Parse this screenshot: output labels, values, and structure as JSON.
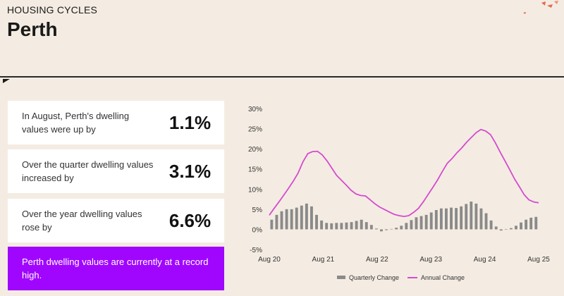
{
  "header": {
    "eyebrow": "HOUSING CYCLES",
    "city": "Perth"
  },
  "stats": [
    {
      "label": "In August, Perth's dwelling values were up by",
      "value": "1.1%"
    },
    {
      "label": "Over the quarter dwelling values increased by",
      "value": "3.1%"
    },
    {
      "label": "Over the year dwelling values rose by",
      "value": "6.6%"
    }
  ],
  "banner": {
    "text": "Perth dwelling values are currently at a record high."
  },
  "colors": {
    "background": "#f4ece2",
    "banner": "#a006fe",
    "bars": "#8a8a8a",
    "line": "#d64ad0",
    "logo": "#e8674a"
  },
  "chart_data": {
    "type": "bar+line",
    "x_ticks": [
      "Aug 20",
      "Aug 21",
      "Aug 22",
      "Aug 23",
      "Aug 24",
      "Aug 25"
    ],
    "y_ticks": [
      "30%",
      "25%",
      "20%",
      "15%",
      "10%",
      "5%",
      "0%",
      "-5%"
    ],
    "ylim": [
      -5,
      30
    ],
    "grid": false,
    "legend_position": "bottom",
    "series": [
      {
        "name": "Quarterly Change",
        "type": "bar",
        "values": [
          2.4,
          3.6,
          4.5,
          5.0,
          5.0,
          5.4,
          5.9,
          6.4,
          5.7,
          3.6,
          2.2,
          1.6,
          1.5,
          1.6,
          1.6,
          1.7,
          1.8,
          2.1,
          2.4,
          1.8,
          1.1,
          0.2,
          -0.5,
          -0.2,
          0.1,
          0.4,
          0.9,
          1.6,
          2.3,
          3.0,
          3.3,
          3.6,
          4.2,
          4.8,
          5.2,
          5.2,
          5.4,
          5.3,
          5.7,
          6.3,
          6.9,
          6.4,
          5.2,
          4.0,
          2.2,
          0.7,
          -0.3,
          -0.1,
          0.3,
          0.9,
          1.7,
          2.4,
          2.9,
          3.1
        ]
      },
      {
        "name": "Annual Change",
        "type": "line",
        "values": [
          3.5,
          5.2,
          6.8,
          8.5,
          10.2,
          12.0,
          14.0,
          16.8,
          18.8,
          19.3,
          19.4,
          18.5,
          17.0,
          15.2,
          13.4,
          12.2,
          11.0,
          9.7,
          8.8,
          8.4,
          8.3,
          7.3,
          6.3,
          5.5,
          4.9,
          4.3,
          3.7,
          3.4,
          3.2,
          3.4,
          4.2,
          5.2,
          6.8,
          8.6,
          10.4,
          12.3,
          14.4,
          16.4,
          17.6,
          19.0,
          20.2,
          21.6,
          22.8,
          24.0,
          24.8,
          24.4,
          23.5,
          21.5,
          19.2,
          17.0,
          14.8,
          12.5,
          10.6,
          8.6,
          7.3,
          6.8,
          6.6
        ]
      }
    ]
  }
}
